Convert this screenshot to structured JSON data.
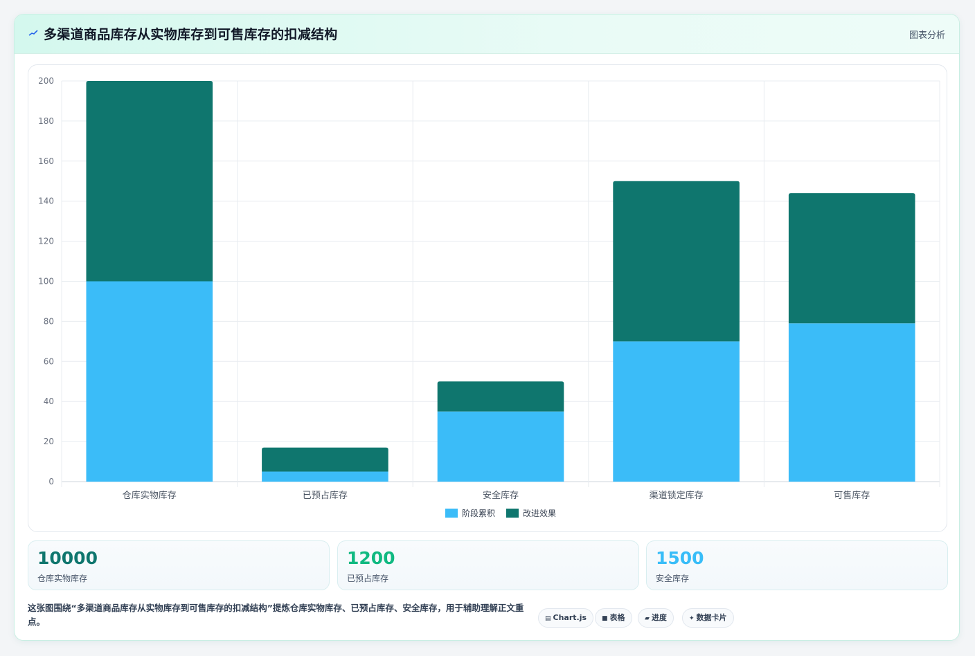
{
  "header": {
    "title": "多渠道商品库存从实物库存到可售库存的扣减结构",
    "action": "图表分析"
  },
  "chart_data": {
    "type": "bar",
    "stacked": true,
    "categories": [
      "仓库实物库存",
      "已预占库存",
      "安全库存",
      "渠道锁定库存",
      "可售库存"
    ],
    "series": [
      {
        "name": "阶段累积",
        "values": [
          100,
          5,
          35,
          70,
          79
        ],
        "color": "#3bbcf8"
      },
      {
        "name": "改进效果",
        "values": [
          100,
          12,
          15,
          80,
          65
        ],
        "color": "#0f766e"
      }
    ],
    "ylim": [
      0,
      200
    ],
    "yticks": [
      0,
      20,
      40,
      60,
      80,
      100,
      120,
      140,
      160,
      180,
      200
    ],
    "grid": true,
    "legend_position": "bottom"
  },
  "stats": [
    {
      "value": "10000",
      "label": "仓库实物库存",
      "color": "#0f766e"
    },
    {
      "value": "1200",
      "label": "已预占库存",
      "color": "#10b981"
    },
    {
      "value": "1500",
      "label": "安全库存",
      "color": "#38bdf8"
    }
  ],
  "summary": "这张图围绕“多渠道商品库存从实物库存到可售库存的扣减结构”提炼仓库实物库存、已预占库存、安全库存，用于辅助理解正文重点。",
  "chips": [
    {
      "icon": "▤",
      "label": "Chart.js"
    },
    {
      "icon": "■",
      "label": "表格"
    },
    {
      "icon": "▰",
      "label": "进度"
    },
    {
      "icon": "✦",
      "label": "数据卡片"
    }
  ]
}
